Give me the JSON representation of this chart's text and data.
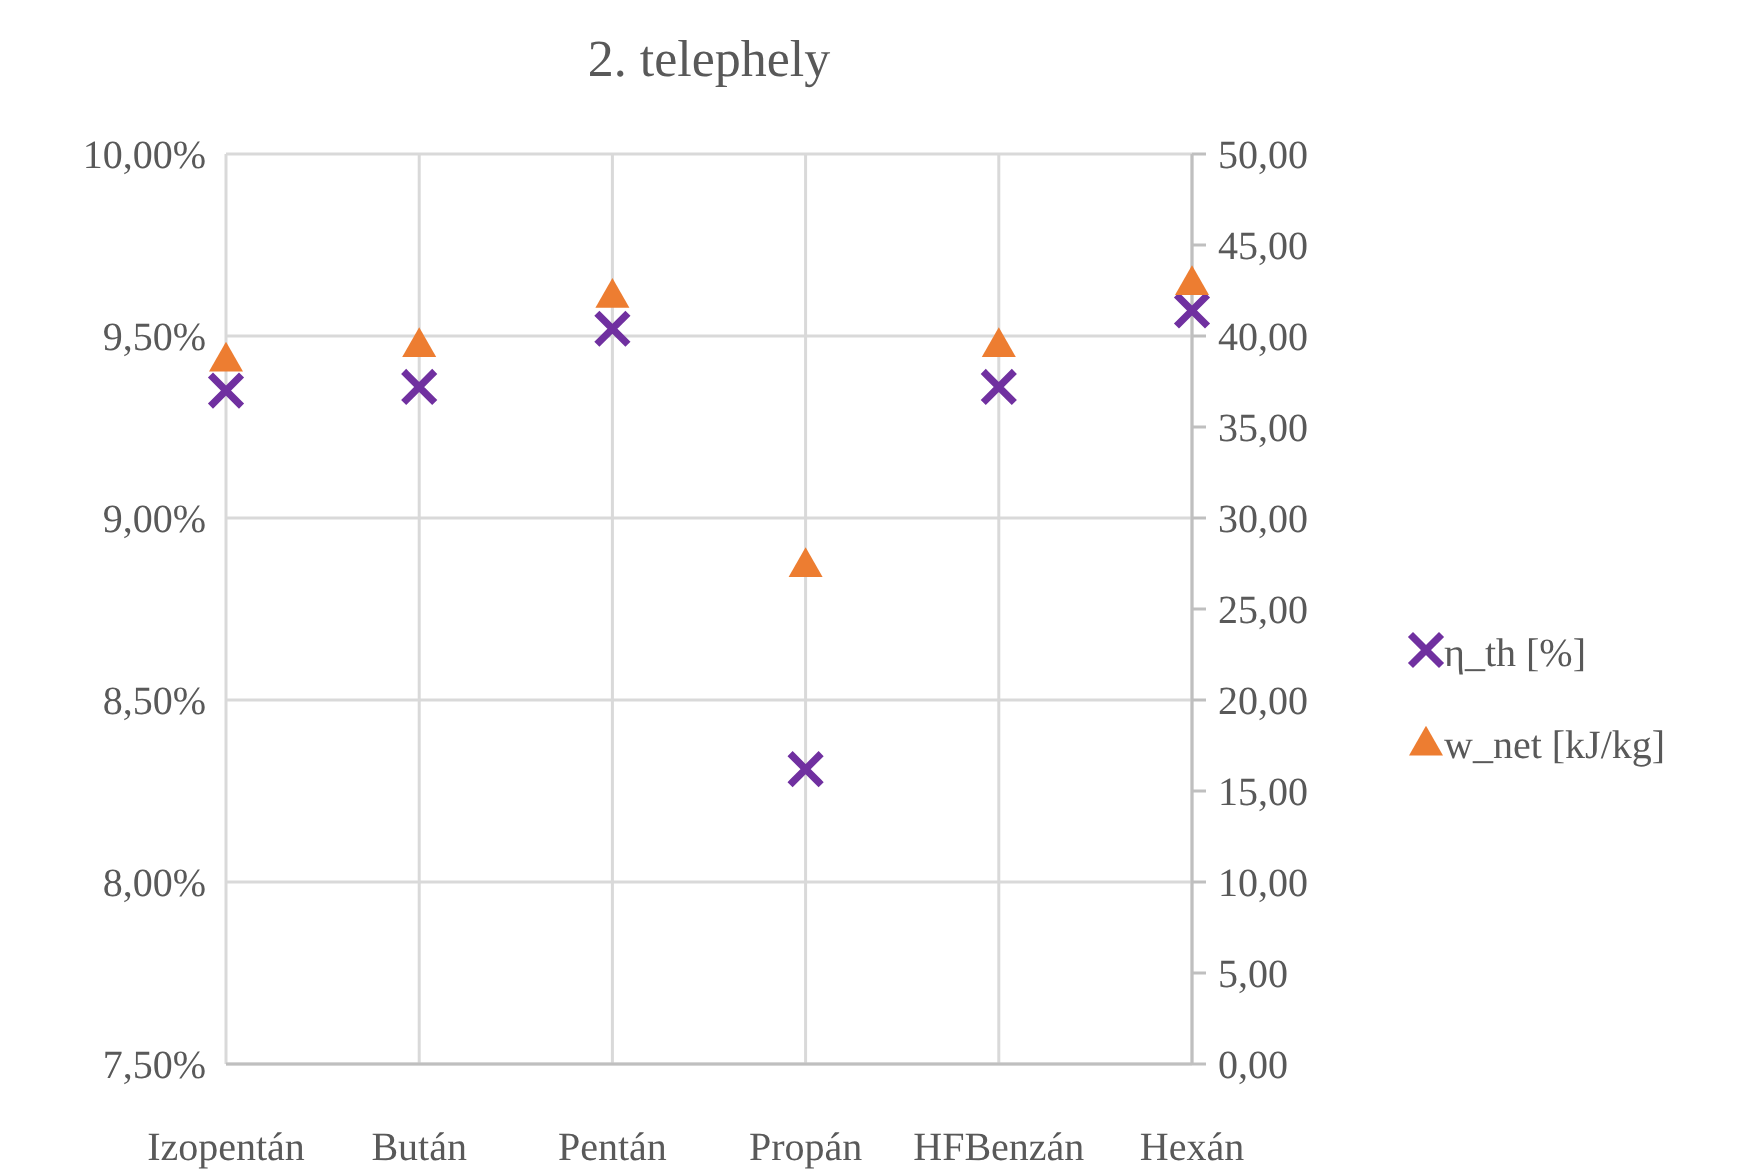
{
  "chart_data": {
    "type": "scatter",
    "title": "2. telephely",
    "categories": [
      "Izopentán",
      "Bután",
      "Pentán",
      "Propán",
      "HFBenzán",
      "Hexán"
    ],
    "series": [
      {
        "name": "η_th [%]",
        "color": "#7030a0",
        "marker": "cross",
        "values": [
          9.35,
          9.36,
          9.52,
          8.31,
          9.36,
          9.57
        ]
      },
      {
        "name": "w_net [kJ/kg]",
        "color": "#ed7d31",
        "marker": "triangle",
        "axis": "y2",
        "values": [
          38.8,
          39.6,
          42.3,
          27.5,
          39.6,
          43.0
        ]
      }
    ],
    "ylim": [
      7.5,
      10
    ],
    "yticks": [
      {
        "value": 7.5,
        "label": "7,50%"
      },
      {
        "value": 8,
        "label": "8,00%"
      },
      {
        "value": 8.5,
        "label": "8,50%"
      },
      {
        "value": 9,
        "label": "9,00%"
      },
      {
        "value": 9.5,
        "label": "9,50%"
      },
      {
        "value": 10,
        "label": "10,00%"
      }
    ],
    "y2lim": [
      0,
      50
    ],
    "y2ticks": [
      {
        "value": 0,
        "label": "0,00"
      },
      {
        "value": 5,
        "label": "5,00"
      },
      {
        "value": 10,
        "label": "10,00"
      },
      {
        "value": 15,
        "label": "15,00"
      },
      {
        "value": 20,
        "label": "20,00"
      },
      {
        "value": 25,
        "label": "25,00"
      },
      {
        "value": 30,
        "label": "30,00"
      },
      {
        "value": 35,
        "label": "35,00"
      },
      {
        "value": 40,
        "label": "40,00"
      },
      {
        "value": 45,
        "label": "45,00"
      },
      {
        "value": 50,
        "label": "50,00"
      }
    ],
    "grid": true,
    "legend": "right"
  }
}
